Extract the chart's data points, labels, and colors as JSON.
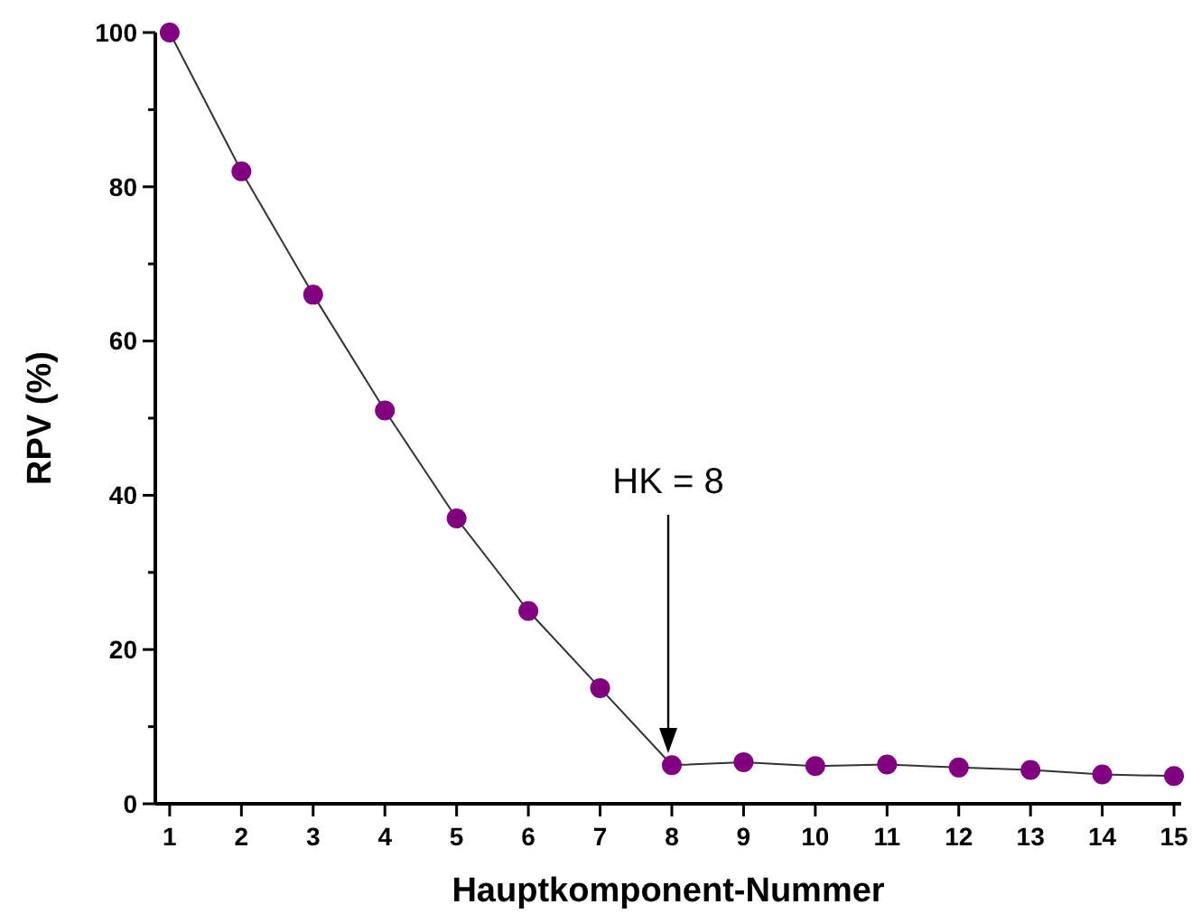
{
  "chart_data": {
    "type": "line",
    "xlabel": "Hauptkomponent-Nummer",
    "ylabel": "RPV (%)",
    "x": [
      1,
      2,
      3,
      4,
      5,
      6,
      7,
      8,
      9,
      10,
      11,
      12,
      13,
      14,
      15
    ],
    "series": [
      {
        "color": "#800080",
        "values": [
          100,
          82,
          66,
          51,
          37,
          25,
          15,
          5,
          5.4,
          4.9,
          5.1,
          4.7,
          4.4,
          3.8,
          3.6
        ]
      }
    ],
    "xlim": [
      0.8,
      15.1
    ],
    "ylim": [
      0,
      100
    ],
    "xticks": [
      1,
      2,
      3,
      4,
      5,
      6,
      7,
      8,
      9,
      10,
      11,
      12,
      13,
      14,
      15
    ],
    "yticks": [
      0,
      {
        "value": 10,
        "label": null
      },
      20,
      {
        "value": 30,
        "label": null
      },
      40,
      {
        "value": 50,
        "label": null
      },
      60,
      {
        "value": 70,
        "label": null
      },
      80,
      {
        "value": 90,
        "label": null
      },
      100
    ],
    "marker": "circle",
    "line_style": "solid",
    "grid": false,
    "annotations": [
      "HK = 8"
    ]
  }
}
